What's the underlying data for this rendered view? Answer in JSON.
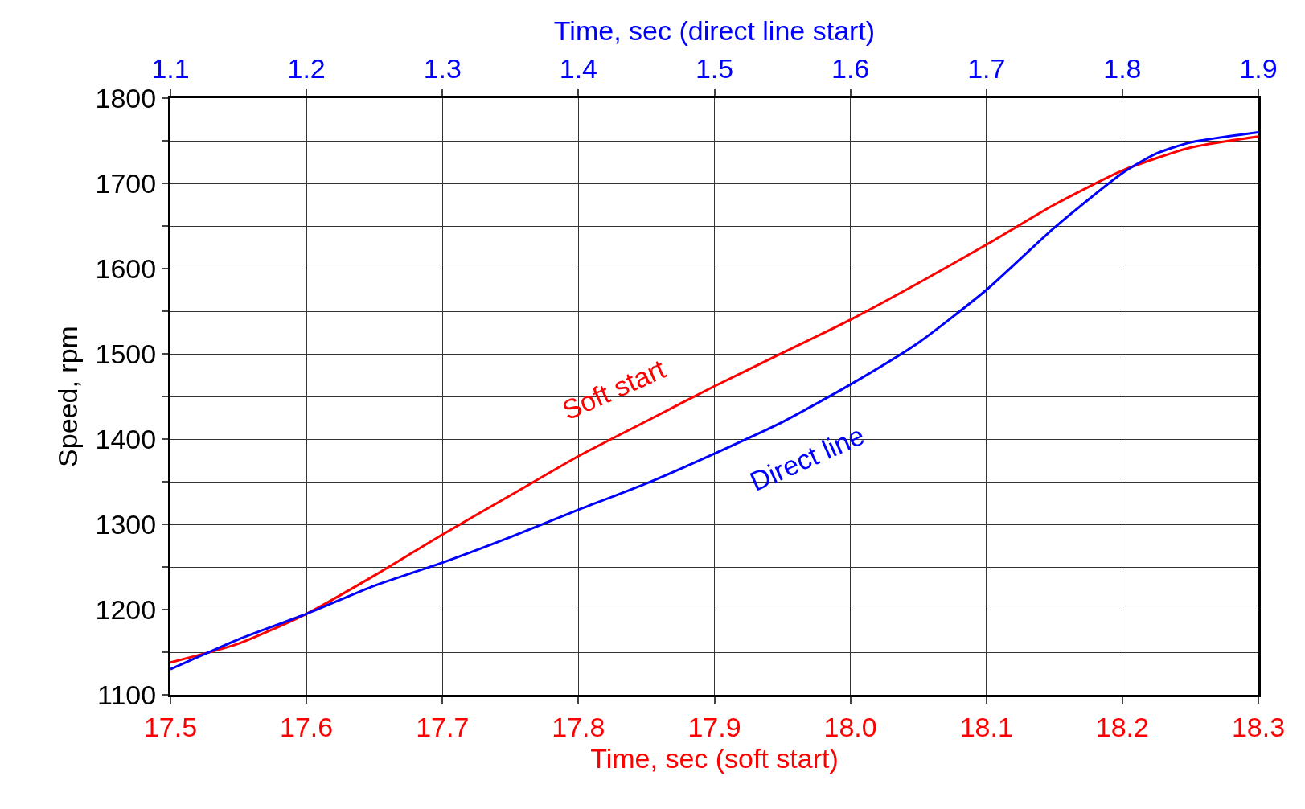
{
  "chart_data": {
    "type": "line",
    "xlabel": "Time, sec (soft start)",
    "x2label": "Time, sec (direct line start)",
    "ylabel": "Speed, rpm",
    "xlim": [
      17.5,
      18.3
    ],
    "xticks": [
      17.5,
      17.6,
      17.7,
      17.8,
      17.9,
      {
        "value": 18,
        "label": "18.0"
      },
      18.1,
      18.2,
      18.3
    ],
    "x2lim": [
      1.1,
      1.9
    ],
    "x2ticks": [
      1.1,
      1.2,
      1.3,
      1.4,
      1.5,
      1.6,
      1.7,
      1.8,
      1.9
    ],
    "ylim": [
      1100,
      1800
    ],
    "yticks": [
      1100,
      {
        "value": 1150,
        "label": null
      },
      1200,
      {
        "value": 1250,
        "label": null
      },
      1300,
      {
        "value": 1350,
        "label": null
      },
      1400,
      {
        "value": 1450,
        "label": null
      },
      1500,
      {
        "value": 1550,
        "label": null
      },
      1600,
      {
        "value": 1650,
        "label": null
      },
      1700,
      {
        "value": 1750,
        "label": null
      },
      1800
    ],
    "grid": true,
    "legend": false,
    "marker": "none",
    "line_style": "solid",
    "series": [
      {
        "name": "Soft start",
        "color": "#ff0000",
        "x": [
          17.5,
          17.55,
          17.6,
          17.65,
          17.7,
          17.75,
          17.8,
          17.85,
          17.9,
          17.95,
          18.0,
          18.05,
          18.1,
          18.15,
          18.2,
          18.25,
          18.3
        ],
        "values": [
          1138,
          1160,
          1195,
          1240,
          1288,
          1334,
          1380,
          1421,
          1462,
          1501,
          1540,
          1583,
          1628,
          1675,
          1715,
          1742,
          1755
        ]
      },
      {
        "name": "Direct line",
        "color": "#0000ff",
        "axis": "x2",
        "x": [
          1.1,
          1.15,
          1.2,
          1.25,
          1.3,
          1.35,
          1.4,
          1.45,
          1.5,
          1.55,
          1.6,
          1.65,
          1.7,
          1.75,
          1.8,
          1.825,
          1.85,
          1.9
        ],
        "values": [
          1130,
          1165,
          1195,
          1228,
          1255,
          1285,
          1317,
          1348,
          1383,
          1420,
          1464,
          1513,
          1575,
          1648,
          1712,
          1735,
          1748,
          1760
        ]
      }
    ]
  }
}
